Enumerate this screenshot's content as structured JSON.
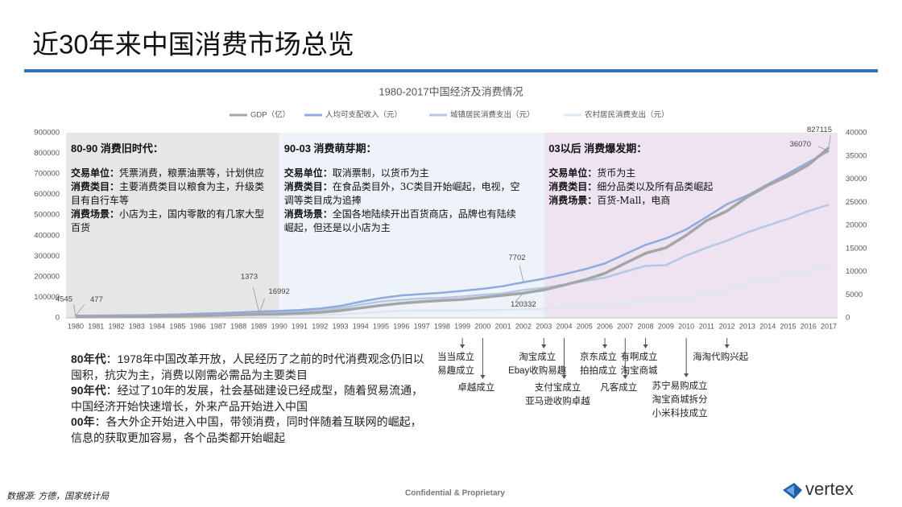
{
  "title": "近30年来中国消费市场总览",
  "chart_data": {
    "type": "line",
    "title": "1980-2017中国经济及消费情况",
    "categories": [
      "1980",
      "1981",
      "1982",
      "1983",
      "1984",
      "1985",
      "1986",
      "1987",
      "1988",
      "1989",
      "1990",
      "1991",
      "1992",
      "1993",
      "1994",
      "1995",
      "1996",
      "1997",
      "1998",
      "1999",
      "2000",
      "2001",
      "2002",
      "2003",
      "2004",
      "2005",
      "2006",
      "2007",
      "2008",
      "2009",
      "2010",
      "2011",
      "2012",
      "2013",
      "2014",
      "2015",
      "2016",
      "2017"
    ],
    "series": [
      {
        "name": "GDP（亿）",
        "color": "#a5a5a5",
        "values": [
          4545,
          4891,
          5323,
          5963,
          7208,
          9016,
          10275,
          12059,
          15043,
          16992,
          18668,
          21781,
          26923,
          35334,
          48198,
          60794,
          71177,
          78973,
          84402,
          89677,
          99215,
          109655,
          120332,
          135823,
          159878,
          184937,
          216314,
          265810,
          314045,
          340903,
          401513,
          473104,
          519470,
          588019,
          643974,
          689052,
          743586,
          827115
        ]
      },
      {
        "name": "人均可支配收入（元）",
        "color": "#8faadc",
        "axis": "y2",
        "values": [
          477,
          500,
          535,
          565,
          652,
          739,
          900,
          1002,
          1180,
          1373,
          1510,
          1701,
          2027,
          2577,
          3496,
          4283,
          4839,
          5160,
          5425,
          5854,
          6280,
          6860,
          7702,
          8472,
          9422,
          10493,
          11759,
          13786,
          15781,
          17175,
          19109,
          21810,
          24565,
          26467,
          28844,
          31195,
          33616,
          36070
        ]
      },
      {
        "name": "城镇居民消费支出（元）",
        "color": "#b4c7e7",
        "axis": "y2",
        "values": [
          412,
          457,
          471,
          506,
          559,
          673,
          799,
          884,
          1104,
          1211,
          1279,
          1454,
          1672,
          2111,
          2851,
          3538,
          3919,
          4186,
          4332,
          4616,
          4998,
          5309,
          6030,
          6511,
          7182,
          7943,
          8697,
          9997,
          11243,
          11400,
          13471,
          15161,
          16674,
          18488,
          19968,
          21392,
          23079,
          24445
        ]
      },
      {
        "name": "农村居民消费支出（元）",
        "color": "#dee6f3",
        "axis": "y2",
        "values": [
          162,
          191,
          220,
          248,
          273,
          317,
          357,
          398,
          477,
          535,
          585,
          620,
          659,
          770,
          1017,
          1310,
          1572,
          1617,
          1590,
          1577,
          1670,
          1741,
          1834,
          1943,
          2185,
          2555,
          2829,
          3224,
          3661,
          3993,
          4382,
          5221,
          5908,
          7485,
          8383,
          9223,
          10130,
          10955
        ]
      }
    ],
    "ylim": [
      0,
      900000
    ],
    "yticks": [
      0,
      100000,
      200000,
      300000,
      400000,
      500000,
      600000,
      700000,
      800000,
      900000
    ],
    "y2lim": [
      0,
      40000
    ],
    "y2ticks": [
      0,
      5000,
      10000,
      15000,
      20000,
      25000,
      30000,
      35000,
      40000
    ],
    "eras": [
      {
        "start": "1980",
        "end": "1990",
        "color": "#e7e6e6",
        "title": "80-90 消费旧时代：",
        "items": [
          {
            "label": "交易单位：",
            "text": "凭票消费，粮票油票等，计划供应"
          },
          {
            "label": "消费类目：",
            "text": "主要消费类目以粮食为主，升级类目有自行车等"
          },
          {
            "label": "消费场景：",
            "text": "小店为主，国内零散的有几家大型百货"
          }
        ]
      },
      {
        "start": "1990",
        "end": "2003",
        "color": "#eef3fa",
        "title": "90-03 消费萌芽期：",
        "items": [
          {
            "label": "交易单位：",
            "text": "取消票制，以货币为主"
          },
          {
            "label": "消费类目：",
            "text": "在食品类目外，3C类目开始崛起，电视，空调等类目成为追捧"
          },
          {
            "label": "消费场景：",
            "text": "全国各地陆续开出百货商店，品牌也有陆续崛起，但还是以小店为主"
          }
        ]
      },
      {
        "start": "2003",
        "end": "2017",
        "color": "#ede3f1",
        "title": "03以后 消费爆发期：",
        "items": [
          {
            "label": "交易单位：",
            "text": "货币为主"
          },
          {
            "label": "消费类目：",
            "text": "细分品类以及所有品类崛起"
          },
          {
            "label": "消费场景：",
            "text": "百货-Mall，电商"
          }
        ]
      }
    ],
    "milestones": [
      {
        "year": "1999",
        "lines": [
          "当当成立",
          "易趣成立"
        ]
      },
      {
        "year": "2000",
        "lines": [
          "卓越成立"
        ]
      },
      {
        "year": "2003",
        "lines": [
          "淘宝成立",
          "Ebay收购易趣"
        ]
      },
      {
        "year": "2004",
        "lines": [
          "支付宝成立",
          "亚马逊收购卓越"
        ]
      },
      {
        "year": "2006",
        "lines": [
          "京东成立",
          "拍拍成立"
        ]
      },
      {
        "year": "2007",
        "lines": [
          "凡客成立"
        ]
      },
      {
        "year": "2008",
        "lines": [
          "有啊成立",
          "淘宝商城"
        ]
      },
      {
        "year": "2010",
        "lines": [
          "苏宁易购成立",
          "淘宝商城拆分",
          "小米科技成立"
        ]
      },
      {
        "year": "2012",
        "lines": [
          "海淘代购兴起"
        ]
      }
    ]
  },
  "notes": [
    {
      "label": "80年代",
      "text": "：1978年中国改革开放，人民经历了之前的时代消费观念仍旧以囤积，抗灾为主，消费以刚需必需品为主要类目"
    },
    {
      "label": "90年代",
      "text": "：经过了10年的发展，社会基础建设已经成型，随着贸易流通，中国经济开始快速增长，外来产品开始进入中国"
    },
    {
      "label": "00年",
      "text": "：各大外企开始进入中国，带领消费，同时伴随着互联网的崛起，信息的获取更加容易，各个品类都开始崛起"
    }
  ],
  "footer": {
    "source": "数据源: 方德，国家统计局",
    "confidential": "Confidential & Proprietary",
    "logo": "vertex"
  }
}
